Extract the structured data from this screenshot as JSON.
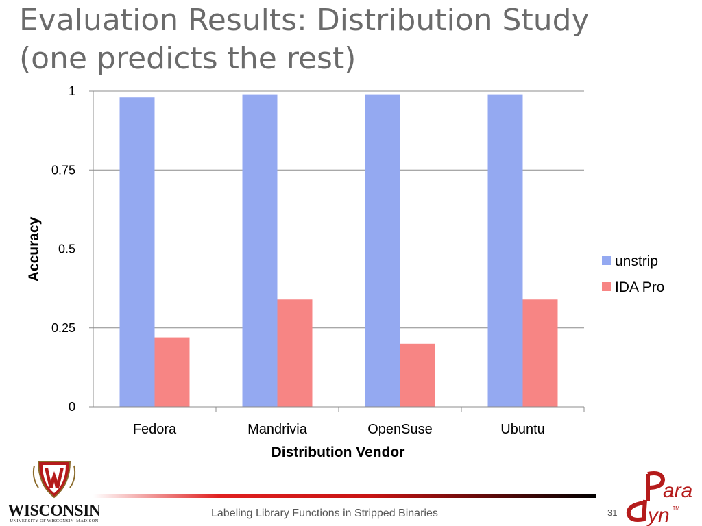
{
  "slide": {
    "title_line1": "Evaluation Results: Distribution Study",
    "title_line2": "(one predicts the rest)",
    "footer": "Labeling Library Functions in Stripped Binaries",
    "page_number": "31",
    "logo_left_name": "WISCONSIN",
    "logo_left_sub": "UNIVERSITY OF WISCONSIN–MADISON",
    "logo_right_name": "Paradyn",
    "logo_right_mark": "TM"
  },
  "chart_data": {
    "type": "bar",
    "title": "",
    "xlabel": "Distribution Vendor",
    "ylabel": "Accuracy",
    "categories": [
      "Fedora",
      "Mandrivia",
      "OpenSuse",
      "Ubuntu"
    ],
    "series": [
      {
        "name": "unstrip",
        "values": [
          0.98,
          0.99,
          0.99,
          0.99
        ],
        "color": "#94a9f1"
      },
      {
        "name": "IDA Pro",
        "values": [
          0.22,
          0.34,
          0.2,
          0.34
        ],
        "color": "#f78584"
      }
    ],
    "ylim": [
      0,
      1
    ],
    "yticks": [
      {
        "value": 0,
        "label": "0"
      },
      {
        "value": 0.25,
        "label": "0.25"
      },
      {
        "value": 0.5,
        "label": "0.5"
      },
      {
        "value": 0.75,
        "label": "0.75"
      },
      {
        "value": 1,
        "label": "1"
      }
    ],
    "grid": true,
    "legend": "right"
  }
}
